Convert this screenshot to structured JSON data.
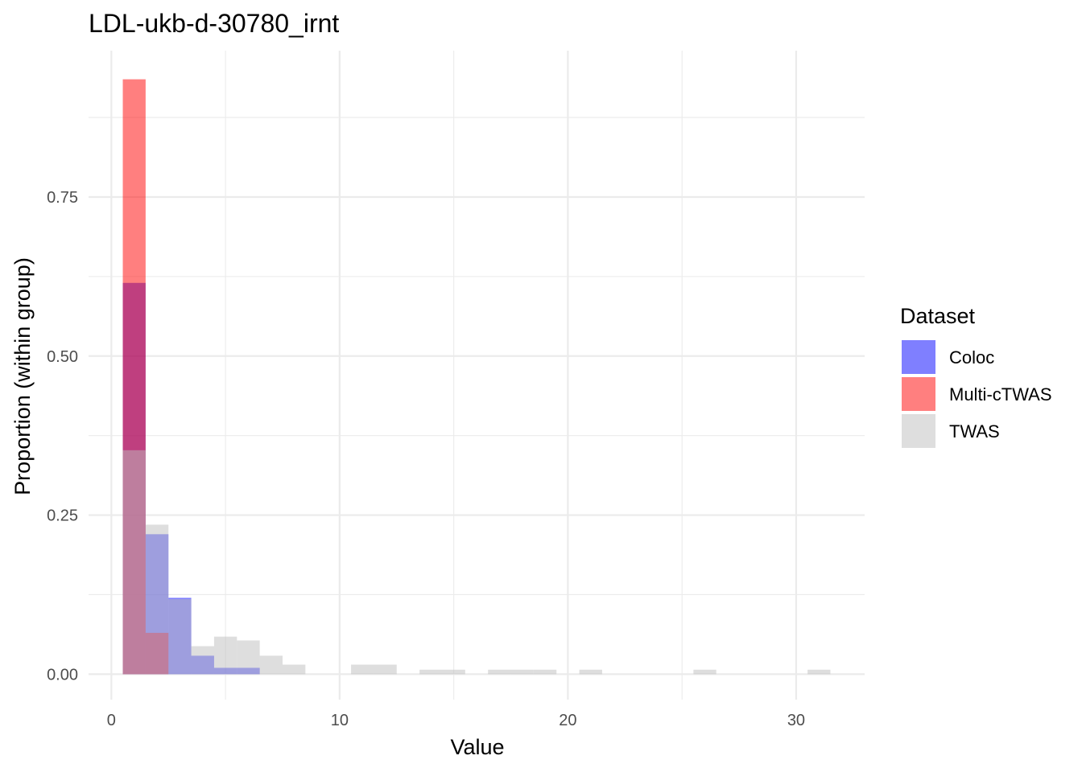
{
  "chart_data": {
    "type": "bar",
    "title": "LDL-ukb-d-30780_irnt",
    "xlabel": "Value",
    "ylabel": "Proportion (within group)",
    "xlim": [
      -1,
      33
    ],
    "ylim": [
      -0.04,
      0.98
    ],
    "x_ticks": [
      0,
      10,
      20,
      30
    ],
    "x_tick_labels": [
      "0",
      "10",
      "20",
      "30"
    ],
    "y_ticks": [
      0.0,
      0.25,
      0.5,
      0.75
    ],
    "y_tick_labels": [
      "0.00",
      "0.25",
      "0.50",
      "0.75"
    ],
    "grid": true,
    "legend": {
      "title": "Dataset",
      "position": "right"
    },
    "series": [
      {
        "name": "Coloc",
        "color": "#0000FF",
        "opacity": 0.5,
        "bins": [
          {
            "x0": 0.5,
            "x1": 1.5,
            "y": 0.615
          },
          {
            "x0": 1.5,
            "x1": 2.5,
            "y": 0.22
          },
          {
            "x0": 2.5,
            "x1": 3.5,
            "y": 0.12
          },
          {
            "x0": 3.5,
            "x1": 4.5,
            "y": 0.029
          },
          {
            "x0": 4.5,
            "x1": 5.5,
            "y": 0.01
          },
          {
            "x0": 5.5,
            "x1": 6.5,
            "y": 0.01
          }
        ]
      },
      {
        "name": "Multi-cTWAS",
        "color": "#FF0000",
        "opacity": 0.5,
        "bins": [
          {
            "x0": 0.5,
            "x1": 1.5,
            "y": 0.935
          },
          {
            "x0": 1.5,
            "x1": 2.5,
            "y": 0.065
          }
        ]
      },
      {
        "name": "TWAS",
        "color": "#BEBEBE",
        "opacity": 0.5,
        "bins": [
          {
            "x0": 0.5,
            "x1": 1.5,
            "y": 0.352
          },
          {
            "x0": 1.5,
            "x1": 2.5,
            "y": 0.235
          },
          {
            "x0": 2.5,
            "x1": 3.5,
            "y": 0.118
          },
          {
            "x0": 3.5,
            "x1": 4.5,
            "y": 0.044
          },
          {
            "x0": 4.5,
            "x1": 5.5,
            "y": 0.059
          },
          {
            "x0": 5.5,
            "x1": 6.5,
            "y": 0.053
          },
          {
            "x0": 6.5,
            "x1": 7.5,
            "y": 0.029
          },
          {
            "x0": 7.5,
            "x1": 8.5,
            "y": 0.015
          },
          {
            "x0": 10.5,
            "x1": 11.5,
            "y": 0.015
          },
          {
            "x0": 11.5,
            "x1": 12.5,
            "y": 0.015
          },
          {
            "x0": 13.5,
            "x1": 14.5,
            "y": 0.007
          },
          {
            "x0": 14.5,
            "x1": 15.5,
            "y": 0.007
          },
          {
            "x0": 16.5,
            "x1": 17.5,
            "y": 0.007
          },
          {
            "x0": 17.5,
            "x1": 18.5,
            "y": 0.007
          },
          {
            "x0": 18.5,
            "x1": 19.5,
            "y": 0.007
          },
          {
            "x0": 20.5,
            "x1": 21.5,
            "y": 0.007
          },
          {
            "x0": 25.5,
            "x1": 26.5,
            "y": 0.007
          },
          {
            "x0": 30.5,
            "x1": 31.5,
            "y": 0.007
          }
        ]
      }
    ]
  }
}
